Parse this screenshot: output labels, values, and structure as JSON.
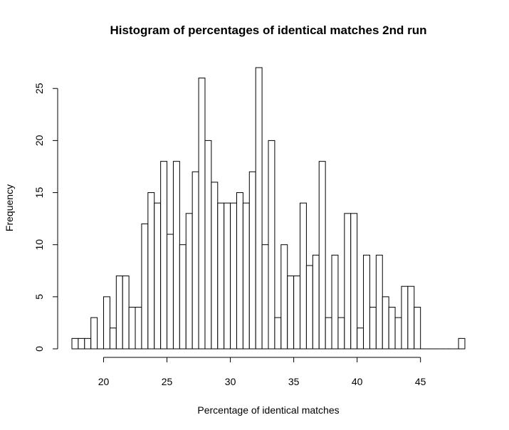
{
  "chart_data": {
    "type": "bar",
    "title": "Histogram of percentages of identical matches 2nd run",
    "xlabel": "Percentage of identical matches",
    "ylabel": "Frequency",
    "x_ticks": [
      20,
      25,
      30,
      35,
      40,
      45
    ],
    "y_ticks": [
      0,
      5,
      10,
      15,
      20,
      25
    ],
    "xlim": [
      17.5,
      48.5
    ],
    "ylim": [
      0,
      27
    ],
    "bin_width": 0.5,
    "bin_start": 17.5,
    "values": [
      1,
      1,
      1,
      3,
      0,
      5,
      2,
      7,
      7,
      4,
      4,
      12,
      15,
      14,
      18,
      11,
      18,
      10,
      13,
      17,
      26,
      20,
      16,
      14,
      14,
      14,
      15,
      14,
      17,
      27,
      10,
      20,
      3,
      10,
      7,
      7,
      14,
      8,
      9,
      18,
      3,
      9,
      3,
      13,
      13,
      2,
      9,
      4,
      9,
      5,
      4,
      3,
      6,
      6,
      4,
      0,
      0,
      0,
      0,
      0,
      0,
      1
    ],
    "colors": {
      "bar_fill": "#ffffff",
      "bar_stroke": "#000000"
    }
  }
}
